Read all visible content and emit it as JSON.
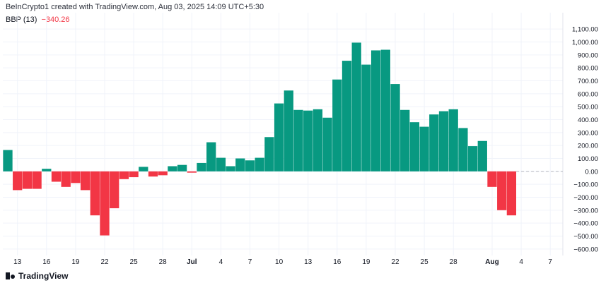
{
  "header": {
    "attribution": "BeInCrypto1 created with TradingView.com, Aug 03, 2025 14:09 UTC+5:30"
  },
  "indicator": {
    "name": "BBP (13)",
    "value": "−340.26"
  },
  "footer": {
    "logo_text": "TradingView"
  },
  "colors": {
    "positive": "#089981",
    "negative": "#f23645",
    "zero_line": "#b2b5be",
    "grid": "#f0f3fa"
  },
  "chart_data": {
    "type": "bar",
    "title": "",
    "xlabel": "",
    "ylabel": "",
    "ylim": [
      -650,
      1150
    ],
    "yticks": [
      "1,100.00",
      "1,000.00",
      "900.00",
      "800.00",
      "700.00",
      "600.00",
      "500.00",
      "400.00",
      "300.00",
      "200.00",
      "100.00",
      "0.00",
      "−100.00",
      "−200.00",
      "−300.00",
      "−400.00",
      "−500.00",
      "−600.00"
    ],
    "ytick_values": [
      1100,
      1000,
      900,
      800,
      700,
      600,
      500,
      400,
      300,
      200,
      100,
      0,
      -100,
      -200,
      -300,
      -400,
      -500,
      -600
    ],
    "xticks": [
      {
        "label": "13",
        "day": 12
      },
      {
        "label": "16",
        "day": 15
      },
      {
        "label": "19",
        "day": 18
      },
      {
        "label": "22",
        "day": 21
      },
      {
        "label": "25",
        "day": 24
      },
      {
        "label": "28",
        "day": 27
      },
      {
        "label": "Jul",
        "day": 30,
        "bold": true
      },
      {
        "label": "4",
        "day": 33
      },
      {
        "label": "7",
        "day": 36
      },
      {
        "label": "10",
        "day": 39
      },
      {
        "label": "13",
        "day": 42
      },
      {
        "label": "16",
        "day": 45
      },
      {
        "label": "19",
        "day": 48
      },
      {
        "label": "22",
        "day": 51
      },
      {
        "label": "25",
        "day": 54
      },
      {
        "label": "28",
        "day": 57
      },
      {
        "label": "Aug",
        "day": 61,
        "bold": true
      },
      {
        "label": "4",
        "day": 64
      },
      {
        "label": "7",
        "day": 67
      }
    ],
    "series": [
      {
        "values": [
          165,
          -145,
          -135,
          -135,
          20,
          -80,
          -120,
          -90,
          -145,
          -340,
          -495,
          -285,
          -60,
          -45,
          35,
          -40,
          -30,
          40,
          50,
          -10,
          65,
          225,
          105,
          40,
          100,
          85,
          105,
          265,
          525,
          625,
          475,
          470,
          480,
          415,
          710,
          855,
          995,
          825,
          935,
          940,
          675,
          475,
          380,
          345,
          440,
          465,
          480,
          335,
          195,
          235,
          -120,
          -300,
          -340
        ]
      }
    ]
  }
}
